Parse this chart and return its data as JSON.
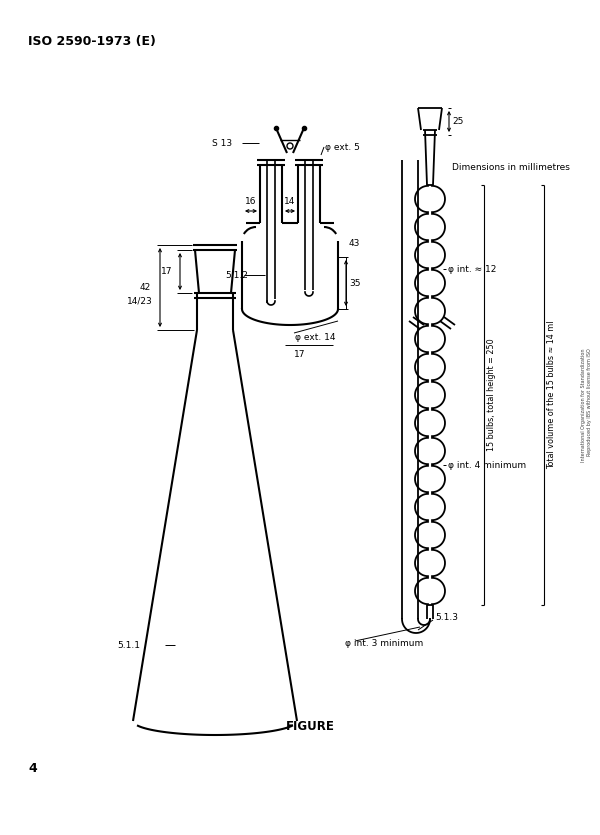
{
  "title": "ISO 2590-1973 (E)",
  "dim_note": "Dimensions in millimetres",
  "figure_label": "FIGURE",
  "page_num": "4",
  "bg_color": "#ffffff",
  "labels": {
    "s13": "S 13",
    "phi_ext5": "φ ext. 5",
    "phi_int12": "φ int. ≈ 12",
    "phi_ext14": "φ ext. 14",
    "phi_int3": "φ int. 3 minimum",
    "phi_int4": "φ int. 4 minimum",
    "label511": "5.1.1",
    "label512": "5.1.2",
    "label513": "5.1.3",
    "label1423": "14/23",
    "dim16": "16",
    "dim14": "14",
    "dim17a": "17",
    "dim17b": "17",
    "dim35": "35",
    "dim42": "42",
    "dim43": "43",
    "dim25": "25",
    "bulbs_label": "15 bulbs, total height = 250",
    "volume_label": "Total volume of the 15 bulbs ≈ 14 ml",
    "copyright": "International Organization for Standardization\nReproduced by IBS without license from ISO"
  }
}
